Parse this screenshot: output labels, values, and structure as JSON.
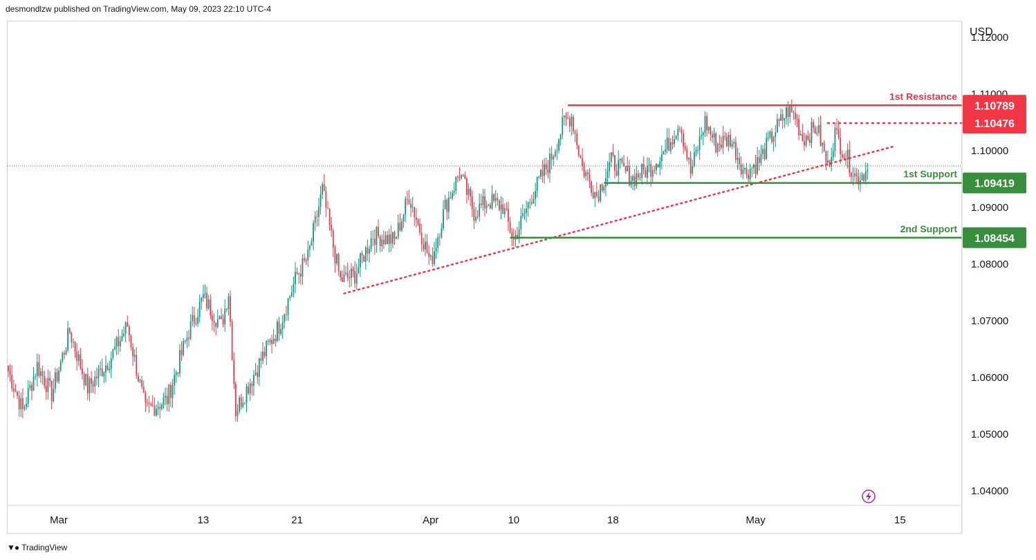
{
  "header": {
    "publisher_line": "desmondlzw published on TradingView.com, May 09, 2023 22:10 UTC-4"
  },
  "brand": {
    "name": "TradingView"
  },
  "chart_data": {
    "type": "candlestick",
    "currency_label": "USD",
    "ylim": [
      1.0375,
      1.1225
    ],
    "yticks": [
      {
        "value": 1.12,
        "label": "1.12000"
      },
      {
        "value": 1.11,
        "label": "1.11000"
      },
      {
        "value": 1.1,
        "label": "1.10000"
      },
      {
        "value": 1.09,
        "label": "1.09000"
      },
      {
        "value": 1.08,
        "label": "1.08000"
      },
      {
        "value": 1.07,
        "label": "1.07000"
      },
      {
        "value": 1.06,
        "label": "1.06000"
      },
      {
        "value": 1.05,
        "label": "1.05000"
      },
      {
        "value": 1.04,
        "label": "1.04000"
      }
    ],
    "xticks": [
      {
        "index": 28,
        "label": "Mar"
      },
      {
        "index": 108,
        "label": "13"
      },
      {
        "index": 160,
        "label": "21"
      },
      {
        "index": 234,
        "label": "Apr"
      },
      {
        "index": 280,
        "label": "10"
      },
      {
        "index": 335,
        "label": "18"
      },
      {
        "index": 414,
        "label": "May"
      },
      {
        "index": 494,
        "label": "15"
      }
    ],
    "x_count": 515,
    "current_price": 1.0972,
    "levels": [
      {
        "name": "1st Resistance",
        "value": 1.10789,
        "label": "1.10789",
        "color": "#f23645",
        "style": "solid",
        "start_index": 310
      },
      {
        "name": "",
        "value": 1.10476,
        "label": "1.10476",
        "color": "#f23645",
        "style": "dotted",
        "start_index": 454
      },
      {
        "name": "1st Support",
        "value": 1.09419,
        "label": "1.09419",
        "color": "#388e3c",
        "style": "solid",
        "start_index": 330
      },
      {
        "name": "2nd Support",
        "value": 1.08454,
        "label": "1.08454",
        "color": "#388e3c",
        "style": "solid",
        "start_index": 278
      }
    ],
    "trendline": {
      "start": {
        "index": 186,
        "value": 1.0747
      },
      "end": {
        "index": 490,
        "value": 1.1006
      },
      "color": "#f23645",
      "style": "dotted"
    },
    "anchors": [
      {
        "i": 0,
        "p": 1.061
      },
      {
        "i": 8,
        "p": 1.054
      },
      {
        "i": 16,
        "p": 1.062
      },
      {
        "i": 24,
        "p": 1.057
      },
      {
        "i": 34,
        "p": 1.068
      },
      {
        "i": 44,
        "p": 1.058
      },
      {
        "i": 56,
        "p": 1.063
      },
      {
        "i": 66,
        "p": 1.069
      },
      {
        "i": 76,
        "p": 1.054
      },
      {
        "i": 88,
        "p": 1.056
      },
      {
        "i": 100,
        "p": 1.068
      },
      {
        "i": 108,
        "p": 1.074
      },
      {
        "i": 118,
        "p": 1.069
      },
      {
        "i": 122,
        "p": 1.075
      },
      {
        "i": 126,
        "p": 1.054
      },
      {
        "i": 140,
        "p": 1.063
      },
      {
        "i": 150,
        "p": 1.069
      },
      {
        "i": 160,
        "p": 1.078
      },
      {
        "i": 166,
        "p": 1.081
      },
      {
        "i": 174,
        "p": 1.093
      },
      {
        "i": 180,
        "p": 1.083
      },
      {
        "i": 184,
        "p": 1.077
      },
      {
        "i": 192,
        "p": 1.078
      },
      {
        "i": 202,
        "p": 1.085
      },
      {
        "i": 214,
        "p": 1.084
      },
      {
        "i": 222,
        "p": 1.092
      },
      {
        "i": 234,
        "p": 1.08
      },
      {
        "i": 242,
        "p": 1.09
      },
      {
        "i": 250,
        "p": 1.096
      },
      {
        "i": 258,
        "p": 1.089
      },
      {
        "i": 266,
        "p": 1.091
      },
      {
        "i": 274,
        "p": 1.09
      },
      {
        "i": 280,
        "p": 1.084
      },
      {
        "i": 290,
        "p": 1.092
      },
      {
        "i": 300,
        "p": 1.098
      },
      {
        "i": 308,
        "p": 1.105
      },
      {
        "i": 312,
        "p": 1.106
      },
      {
        "i": 318,
        "p": 1.097
      },
      {
        "i": 326,
        "p": 1.092
      },
      {
        "i": 334,
        "p": 1.098
      },
      {
        "i": 346,
        "p": 1.095
      },
      {
        "i": 356,
        "p": 1.097
      },
      {
        "i": 364,
        "p": 1.1
      },
      {
        "i": 372,
        "p": 1.105
      },
      {
        "i": 378,
        "p": 1.096
      },
      {
        "i": 386,
        "p": 1.105
      },
      {
        "i": 392,
        "p": 1.101
      },
      {
        "i": 400,
        "p": 1.102
      },
      {
        "i": 408,
        "p": 1.096
      },
      {
        "i": 416,
        "p": 1.098
      },
      {
        "i": 424,
        "p": 1.103
      },
      {
        "i": 432,
        "p": 1.107
      },
      {
        "i": 436,
        "p": 1.106
      },
      {
        "i": 440,
        "p": 1.102
      },
      {
        "i": 448,
        "p": 1.104
      },
      {
        "i": 454,
        "p": 1.097
      },
      {
        "i": 458,
        "p": 1.103
      },
      {
        "i": 464,
        "p": 1.099
      },
      {
        "i": 470,
        "p": 1.095
      },
      {
        "i": 476,
        "p": 1.0965
      }
    ]
  }
}
